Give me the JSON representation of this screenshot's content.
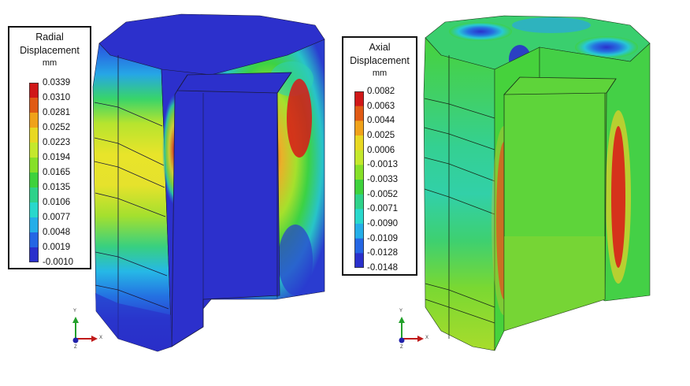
{
  "left": {
    "legend": {
      "title_lines": [
        "Radial",
        "Displacement"
      ],
      "unit": "mm",
      "ticks": [
        "0.0339",
        "0.0310",
        "0.0281",
        "0.0252",
        "0.0223",
        "0.0194",
        "0.0165",
        "0.0135",
        "0.0106",
        "0.0077",
        "0.0048",
        "0.0019",
        "-0.0010"
      ]
    },
    "axes": {
      "y": "Y",
      "x": "X",
      "z": "Z"
    }
  },
  "right": {
    "legend": {
      "title_lines": [
        "Axial",
        "Displacement"
      ],
      "unit": "mm",
      "ticks": [
        "0.0082",
        "0.0063",
        "0.0044",
        "0.0025",
        "0.0006",
        "-0.0013",
        "-0.0033",
        "-0.0052",
        "-0.0071",
        "-0.0090",
        "-0.0109",
        "-0.0128",
        "-0.0148"
      ]
    },
    "axes": {
      "y": "Y",
      "x": "X",
      "z": "Z"
    }
  },
  "colorbar": [
    "#d01818",
    "#e05a14",
    "#f0a21a",
    "#e8d822",
    "#c4e82c",
    "#86e028",
    "#3ed23c",
    "#2ed28a",
    "#28d8cc",
    "#24aee8",
    "#2466e4",
    "#2a30cc"
  ]
}
